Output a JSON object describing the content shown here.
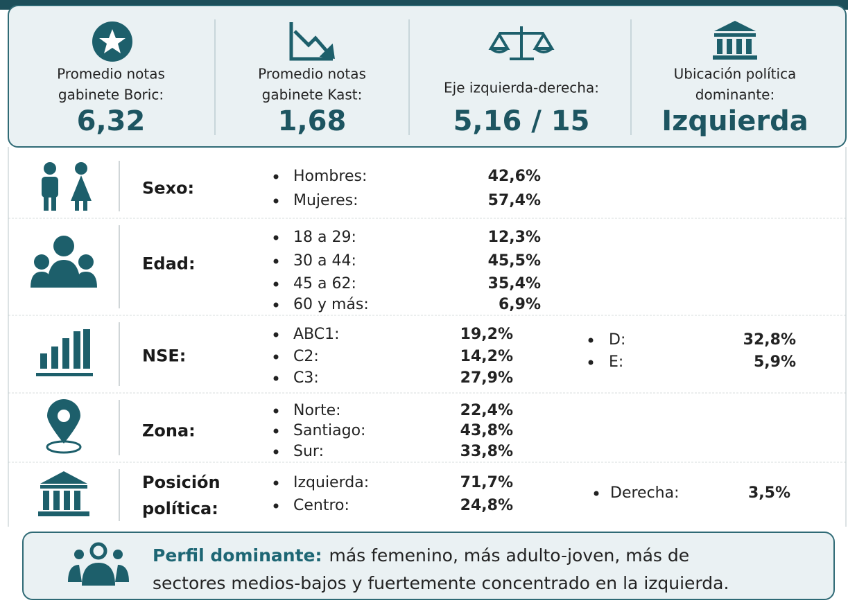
{
  "stats": [
    {
      "label": [
        "Promedio notas",
        "gabinete Boric:"
      ],
      "value": "6,32"
    },
    {
      "label": [
        "Promedio notas",
        "gabinete Kast:"
      ],
      "value": "1,68"
    },
    {
      "label": [
        "Eje izquierda-derecha:"
      ],
      "value": "5,16 / 15"
    },
    {
      "label": [
        "Ubicación política",
        "dominante:"
      ],
      "value": "Izquierda"
    }
  ],
  "rows": [
    {
      "label": [
        "Sexo:"
      ],
      "items": [
        {
          "name": "Hombres:",
          "value": "42,6%"
        },
        {
          "name": "Mujeres:",
          "value": "57,4%"
        }
      ],
      "extra": []
    },
    {
      "label": [
        "Edad:"
      ],
      "items": [
        {
          "name": "18 a 29:",
          "value": "12,3%"
        },
        {
          "name": "30 a 44:",
          "value": "45,5%"
        },
        {
          "name": "45 a 62:",
          "value": "35,4%"
        },
        {
          "name": "60 y más:",
          "value": "6,9%"
        }
      ],
      "extra": []
    },
    {
      "label": [
        "NSE:"
      ],
      "items": [
        {
          "name": "ABC1:",
          "value": "19,2%"
        },
        {
          "name": "C2:",
          "value": "14,2%"
        },
        {
          "name": "C3:",
          "value": "27,9%"
        }
      ],
      "extra": [
        {
          "name": "D:",
          "value": "32,8%"
        },
        {
          "name": "E:",
          "value": "5,9%"
        }
      ]
    },
    {
      "label": [
        "Zona:"
      ],
      "items": [
        {
          "name": "Norte:",
          "value": "22,4%"
        },
        {
          "name": "Santiago:",
          "value": "43,8%"
        },
        {
          "name": "Sur:",
          "value": "33,8%"
        }
      ],
      "extra": []
    },
    {
      "label": [
        "Posición",
        "política:"
      ],
      "items": [
        {
          "name": "Izquierda:",
          "value": "71,7%"
        },
        {
          "name": "Centro:",
          "value": "24,8%"
        }
      ],
      "extra": [
        {
          "name": "Derecha:",
          "value": "3,5%"
        }
      ]
    }
  ],
  "footer": {
    "lead": "Perfil dominante:",
    "lines": [
      "más femenino, más adulto-joven, más de",
      "sectores medios-bajos y fuertemente concentrado en la izquierda."
    ]
  }
}
